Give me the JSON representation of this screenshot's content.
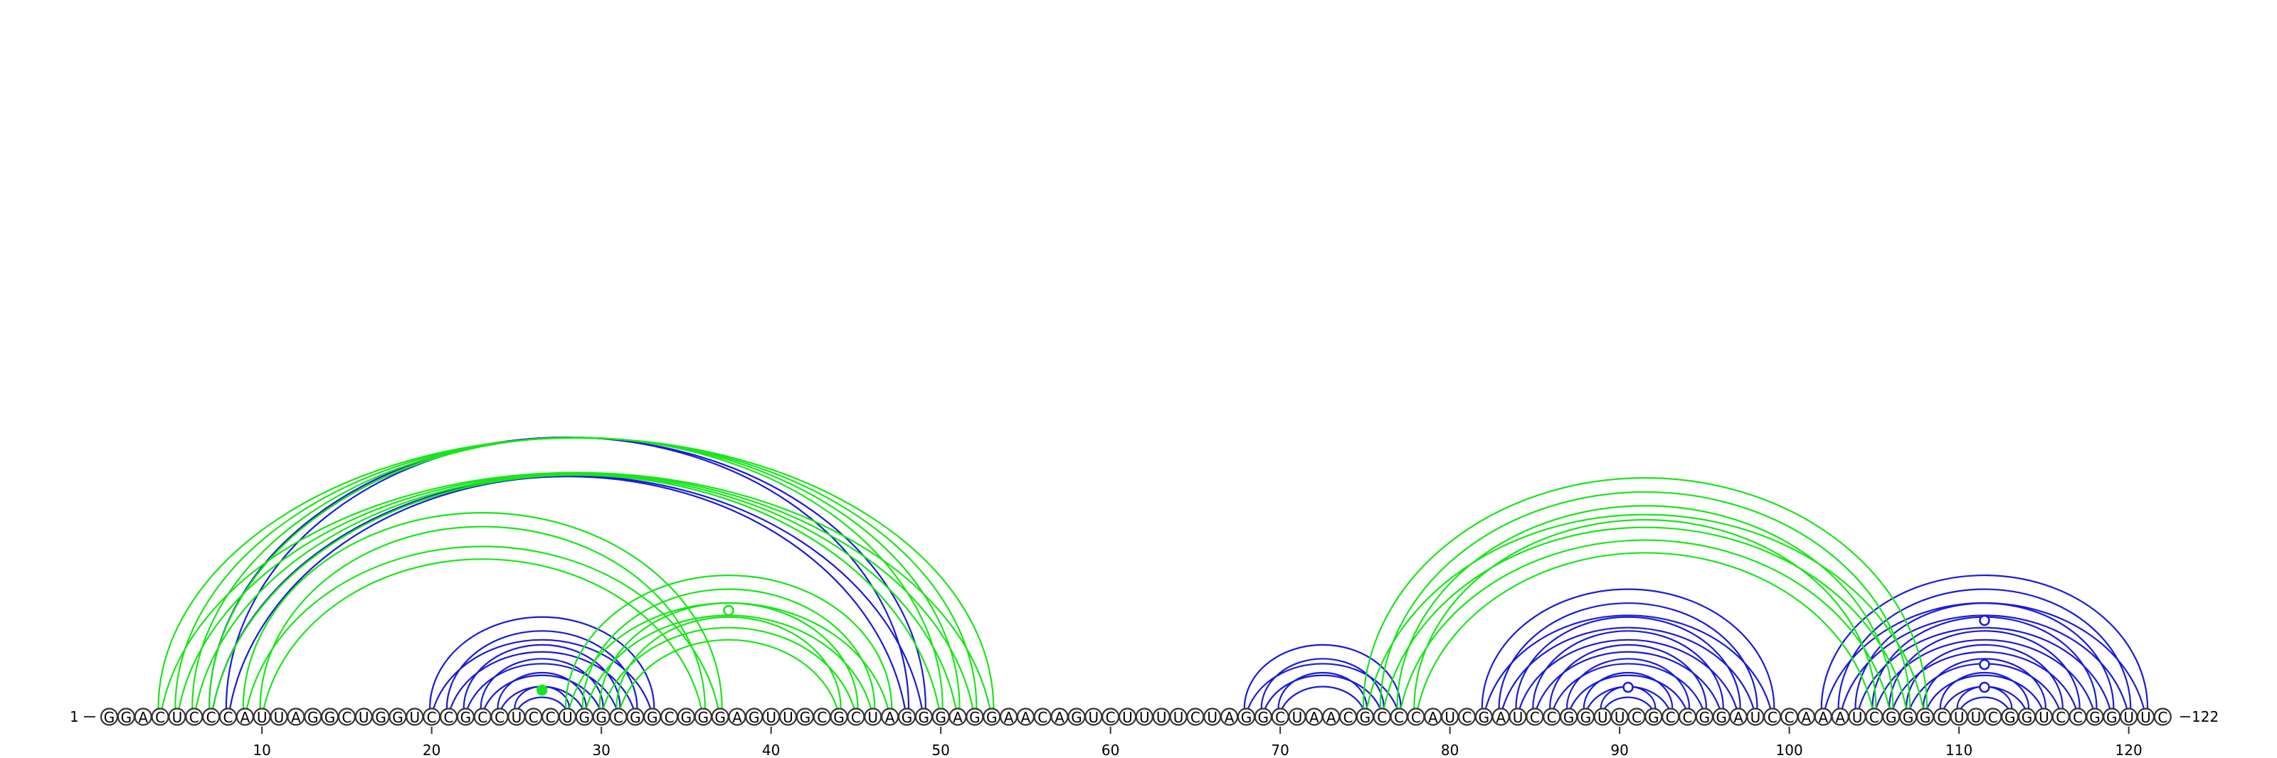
{
  "diagram": {
    "type": "rna-arc-diagram",
    "sequence": "GGACUCCCAUUAGGCUGGUCCGCCUCCUGGCGGCGGGAGUUGCGCUAGGGAGGAACAGUCUUUUCUAGGCUAACGCCCAUCGAUCCGGUUCGCCGGAUCCAAAUCGGGCUUCGGUCCGGUUC",
    "start_label": "1",
    "end_label": "122",
    "position_ticks": [
      10,
      20,
      30,
      40,
      50,
      60,
      70,
      80,
      90,
      100,
      110,
      120
    ],
    "colors": {
      "blue": "#1a1adc",
      "green": "#19e619"
    },
    "blue_pairs": [
      [
        7,
        49
      ],
      [
        8,
        48
      ],
      [
        20,
        33
      ],
      [
        21,
        32
      ],
      [
        22,
        31
      ],
      [
        23,
        30
      ],
      [
        24,
        29
      ],
      [
        25,
        28
      ],
      [
        68,
        77
      ],
      [
        69,
        76
      ],
      [
        70,
        75
      ],
      [
        82,
        99
      ],
      [
        83,
        98
      ],
      [
        84,
        97
      ],
      [
        85,
        96
      ],
      [
        86,
        95
      ],
      [
        87,
        94
      ],
      [
        88,
        93
      ],
      [
        89,
        92
      ],
      [
        102,
        121
      ],
      [
        103,
        120
      ],
      [
        104,
        119
      ],
      [
        105,
        118
      ],
      [
        106,
        117
      ],
      [
        107,
        116
      ],
      [
        108,
        115
      ],
      [
        109,
        114
      ],
      [
        110,
        113
      ]
    ],
    "green_pairs": [
      [
        4,
        53
      ],
      [
        5,
        52
      ],
      [
        6,
        51
      ],
      [
        7,
        50
      ],
      [
        9,
        37
      ],
      [
        10,
        36
      ],
      [
        28,
        47
      ],
      [
        29,
        46
      ],
      [
        30,
        45
      ],
      [
        31,
        44
      ],
      [
        75,
        108
      ],
      [
        76,
        107
      ],
      [
        77,
        106
      ],
      [
        78,
        105
      ]
    ],
    "markers": [
      {
        "position": 26.5,
        "height": 26,
        "color": "green",
        "filled": true
      },
      {
        "position": 37.5,
        "height": 138,
        "color": "green",
        "filled": false
      },
      {
        "position": 90.5,
        "height": 30,
        "color": "blue",
        "filled": false
      },
      {
        "position": 111.5,
        "height": 30,
        "color": "blue",
        "filled": false
      },
      {
        "position": 111.5,
        "height": 62,
        "color": "blue",
        "filled": false
      },
      {
        "position": 111.5,
        "height": 124,
        "color": "blue",
        "filled": false
      }
    ]
  }
}
